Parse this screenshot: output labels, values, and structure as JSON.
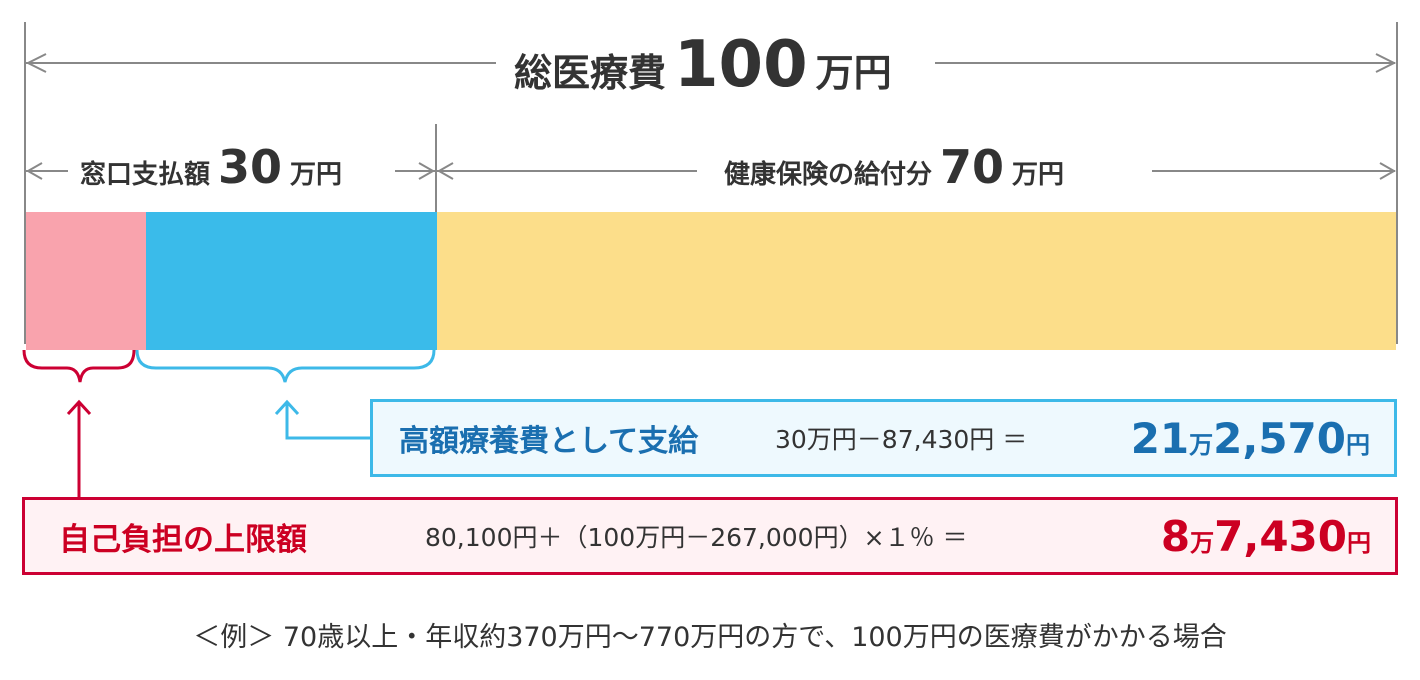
{
  "total": {
    "label": "総医療費",
    "amount": "100",
    "unit": "万円"
  },
  "window_payment": {
    "label": "窓口支払額",
    "amount": "30",
    "unit": "万円"
  },
  "insurance_benefit": {
    "label": "健康保険の給付分",
    "amount": "70",
    "unit": "万円"
  },
  "bar_segments": [
    {
      "name": "self-limit",
      "fraction": 0.0874,
      "color": "#f9a3ad"
    },
    {
      "name": "high-cost-benefit",
      "fraction": 0.2126,
      "color": "#3abbea"
    },
    {
      "name": "insurance",
      "fraction": 0.7,
      "color": "#fcde8a"
    }
  ],
  "high_cost": {
    "title": "高額療養費として支給",
    "formula": "30万円－87,430円 ＝",
    "result_big": "21",
    "result_unit1": "万",
    "result_rest": "2,570",
    "result_unit2": "円",
    "color": "#1a6fb0"
  },
  "self_limit": {
    "title": "自己負担の上限額",
    "formula": "80,100円＋（100万円－267,000円）×１％ ＝",
    "result_big": "8",
    "result_unit1": "万",
    "result_rest": "7,430",
    "result_unit2": "円",
    "color": "#cc0022"
  },
  "caption": "＜例＞ 70歳以上・年収約370万円〜770万円の方で、100万円の医療費がかかる場合"
}
